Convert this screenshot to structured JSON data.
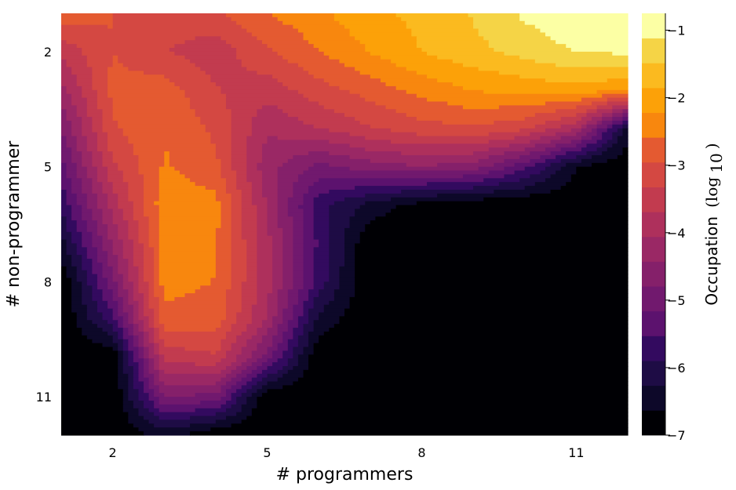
{
  "chart_data": {
    "type": "heatmap",
    "subtype": "filled-contour",
    "xlabel": "# programmers",
    "ylabel": "# non-programmer",
    "x_ticks": [
      2,
      5,
      8,
      11
    ],
    "y_ticks": [
      2,
      5,
      8,
      11
    ],
    "xlim": [
      1,
      12
    ],
    "ylim": [
      12,
      1
    ],
    "y_axis_inverted": true,
    "grid": false,
    "colorbar": {
      "label": "Occupation",
      "label_unit": "(log",
      "label_unit_sub": "10",
      "label_unit_close": ")",
      "range": [
        -7,
        -0.75
      ],
      "ticks": [
        -1,
        -2,
        -3,
        -4,
        -5,
        -6,
        -7
      ],
      "tick_labels": [
        "−1",
        "−2",
        "−3",
        "−4",
        "−5",
        "−6",
        "−7"
      ],
      "levels": 17,
      "colormap": "inferno",
      "colors": [
        "#000004",
        "#0d0829",
        "#1e0c45",
        "#330a5f",
        "#47106e",
        "#5c126e",
        "#71196e",
        "#85206a",
        "#9a2865",
        "#ae305c",
        "#c23b4f",
        "#d44842",
        "#e45a31",
        "#f06f20",
        "#f8870e",
        "#fca108",
        "#fbba1f",
        "#f5d446",
        "#fcffa4"
      ]
    },
    "x": [
      1,
      2,
      3,
      4,
      5,
      6,
      7,
      8,
      9,
      10,
      11,
      12
    ],
    "y": [
      1,
      2,
      3,
      4,
      5,
      6,
      7,
      8,
      9,
      10,
      11,
      12
    ],
    "z": [
      [
        -2.7,
        -2.95,
        -3.2,
        -3.0,
        -2.6,
        -2.3,
        -1.95,
        -1.75,
        -1.45,
        -1.05,
        -0.82,
        -0.75
      ],
      [
        -3.6,
        -2.95,
        -3.3,
        -3.55,
        -3.0,
        -2.6,
        -2.2,
        -1.85,
        -1.6,
        -1.35,
        -1.1,
        -1.05
      ],
      [
        -4.2,
        -2.85,
        -2.75,
        -3.3,
        -3.55,
        -3.1,
        -2.8,
        -2.45,
        -2.2,
        -2.1,
        -2.0,
        -2.2
      ],
      [
        -4.8,
        -3.0,
        -2.6,
        -3.05,
        -4.0,
        -3.7,
        -3.35,
        -3.1,
        -3.0,
        -3.25,
        -4.0,
        -6.4
      ],
      [
        -5.3,
        -3.4,
        -2.55,
        -2.85,
        -4.3,
        -4.9,
        -4.6,
        -4.45,
        -4.6,
        -5.4,
        -6.6,
        -7.0
      ],
      [
        -5.8,
        -3.9,
        -2.35,
        -2.45,
        -4.1,
        -5.75,
        -6.4,
        -6.8,
        -6.95,
        -7.0,
        -7.0,
        -7.0
      ],
      [
        -6.4,
        -4.4,
        -2.45,
        -2.55,
        -3.95,
        -5.6,
        -7.0,
        -7.0,
        -7.0,
        -7.0,
        -7.0,
        -7.0
      ],
      [
        -7.0,
        -4.9,
        -2.45,
        -2.6,
        -3.9,
        -5.7,
        -7.0,
        -7.0,
        -7.0,
        -7.0,
        -7.0,
        -7.0
      ],
      [
        -7.0,
        -5.7,
        -2.7,
        -2.75,
        -4.1,
        -6.4,
        -7.0,
        -7.0,
        -7.0,
        -7.0,
        -7.0,
        -7.0
      ],
      [
        -7.0,
        -7.0,
        -3.6,
        -3.4,
        -5.0,
        -7.0,
        -7.0,
        -7.0,
        -7.0,
        -7.0,
        -7.0,
        -7.0
      ],
      [
        -7.0,
        -7.0,
        -4.8,
        -4.9,
        -7.0,
        -7.0,
        -7.0,
        -7.0,
        -7.0,
        -7.0,
        -7.0,
        -7.0
      ],
      [
        -7.0,
        -7.0,
        -6.5,
        -7.0,
        -7.0,
        -7.0,
        -7.0,
        -7.0,
        -7.0,
        -7.0,
        -7.0,
        -7.0
      ]
    ]
  }
}
